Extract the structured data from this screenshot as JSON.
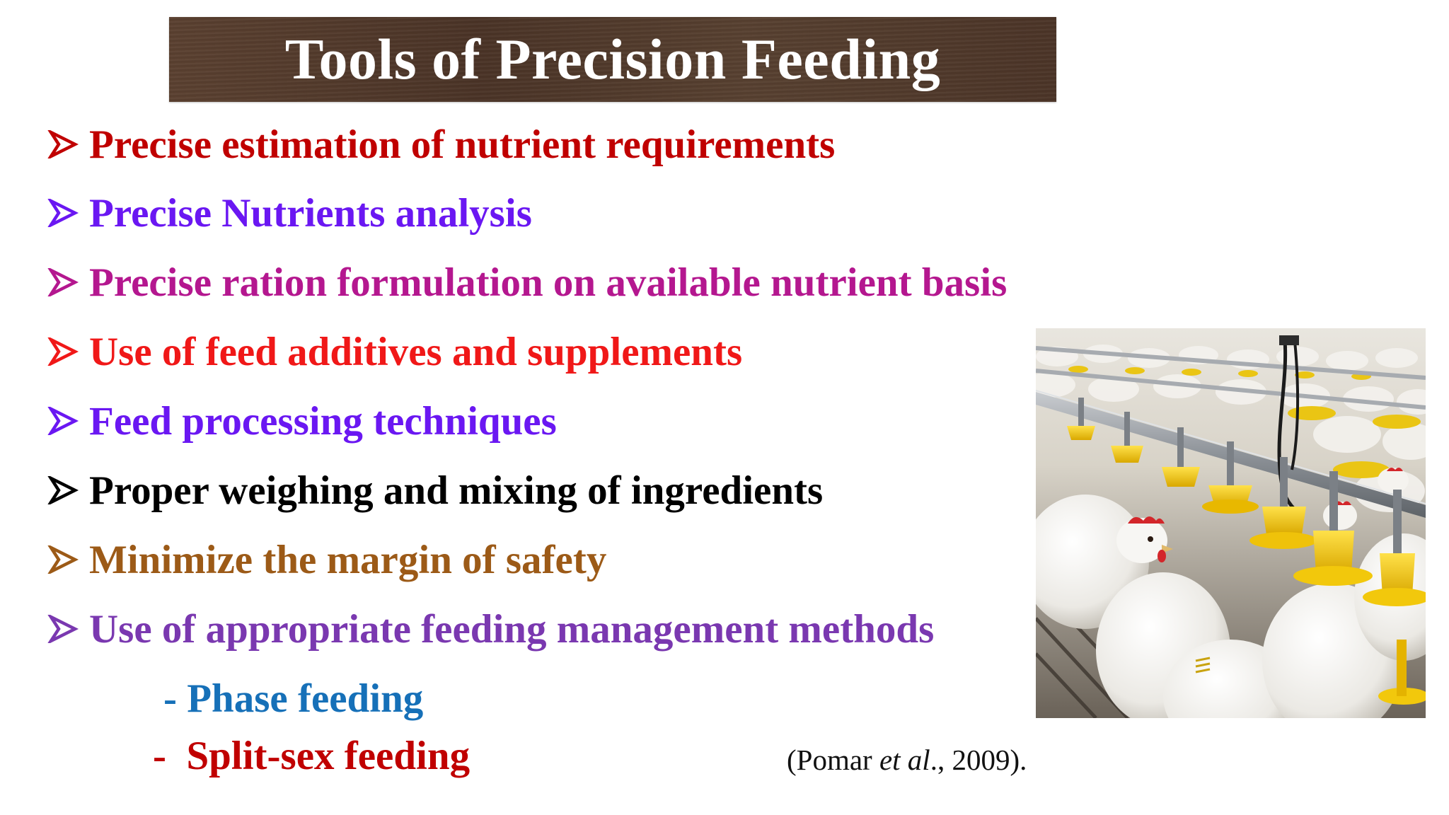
{
  "title": "Tools of Precision Feeding",
  "bullets": [
    {
      "text": "Precise estimation of nutrient requirements",
      "color": "#c00000"
    },
    {
      "text": "Precise Nutrients analysis",
      "color": "#6a17f2"
    },
    {
      "text": "Precise ration formulation on available nutrient basis",
      "color": "#b4178f"
    },
    {
      "text": "Use of feed additives and supplements",
      "color": "#f01818"
    },
    {
      "text": "Feed processing techniques",
      "color": "#6a17f2"
    },
    {
      "text": "Proper weighing and mixing of ingredients",
      "color": "#000000"
    },
    {
      "text": "Minimize the margin of  safety",
      "color": "#9c5a17"
    },
    {
      "text": "Use of  appropriate feeding management methods",
      "color": "#7a38b0"
    }
  ],
  "sub_items": [
    {
      "text": "- Phase feeding",
      "color": "#1670b8"
    },
    {
      "text": "-  Split-sex feeding",
      "color": "#c00000"
    }
  ],
  "citation": {
    "open": "(Pomar ",
    "italic": "et al",
    "close": "., 2009)."
  },
  "bullet_marker_icon": "arrowhead-outline-icon",
  "photo_icon": "poultry-house-photo",
  "colors": {
    "title_bar": "#4f3729",
    "title_text": "#ffffff",
    "feeder_yellow": "#f2cc12"
  }
}
